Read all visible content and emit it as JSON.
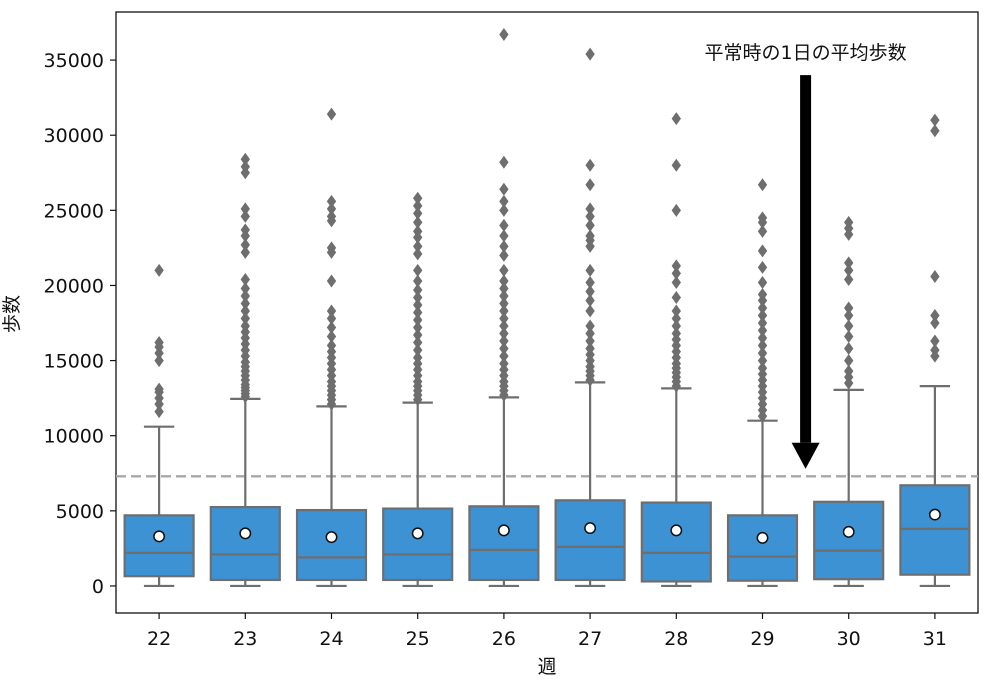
{
  "chart_data": {
    "type": "box",
    "xlabel": "週",
    "ylabel": "歩数",
    "ylim": [
      -1800,
      38200
    ],
    "yticks": [
      0,
      5000,
      10000,
      15000,
      20000,
      25000,
      30000,
      35000
    ],
    "categories": [
      "22",
      "23",
      "24",
      "25",
      "26",
      "27",
      "28",
      "29",
      "30",
      "31"
    ],
    "reference_line": {
      "y": 7300,
      "style": "dashed",
      "color": "#a8a8a8"
    },
    "annotation": {
      "text": "平常時の1日の平均歩数",
      "arrow_from_y": 34000,
      "arrow_to_y": 7800,
      "arrow_x_category": "29.5"
    },
    "box_color": "#3d92d4",
    "line_color": "#6e6e6e",
    "boxes": [
      {
        "category": "22",
        "whisker_low": 0,
        "q1": 650,
        "median": 2200,
        "q3": 4700,
        "whisker_high": 10600,
        "mean": 3300,
        "outliers": [
          11600,
          12100,
          12500,
          12900,
          13100,
          15000,
          15500,
          15900,
          16200,
          21000
        ]
      },
      {
        "category": "23",
        "whisker_low": 0,
        "q1": 400,
        "median": 2100,
        "q3": 5250,
        "whisker_high": 12450,
        "mean": 3500,
        "outliers": [
          12600,
          12800,
          13000,
          13200,
          13400,
          13700,
          14000,
          14300,
          14600,
          14900,
          15300,
          15700,
          16100,
          16500,
          16900,
          17300,
          17800,
          18300,
          18800,
          19300,
          19800,
          20400,
          22200,
          22700,
          23300,
          23700,
          24600,
          25100,
          27500,
          27900,
          28400
        ]
      },
      {
        "category": "24",
        "whisker_low": 0,
        "q1": 400,
        "median": 1900,
        "q3": 5050,
        "whisker_high": 11950,
        "mean": 3250,
        "outliers": [
          12100,
          12400,
          12700,
          13000,
          13300,
          13600,
          14000,
          14400,
          14800,
          15200,
          15600,
          16000,
          16600,
          17200,
          17800,
          18300,
          20300,
          22200,
          22500,
          24300,
          24600,
          25100,
          25600,
          31400
        ]
      },
      {
        "category": "25",
        "whisker_low": 0,
        "q1": 400,
        "median": 2100,
        "q3": 5150,
        "whisker_high": 12200,
        "mean": 3500,
        "outliers": [
          12400,
          12700,
          13000,
          13300,
          13600,
          14000,
          14400,
          14800,
          15200,
          15700,
          16200,
          16700,
          17200,
          17700,
          18200,
          18700,
          19200,
          19700,
          20300,
          21000,
          22100,
          22600,
          23200,
          23600,
          24200,
          24800,
          25300,
          25800
        ]
      },
      {
        "category": "26",
        "whisker_low": 0,
        "q1": 400,
        "median": 2400,
        "q3": 5300,
        "whisker_high": 12550,
        "mean": 3700,
        "outliers": [
          12700,
          13000,
          13300,
          13600,
          14000,
          14400,
          14800,
          15300,
          15800,
          16300,
          16800,
          17300,
          17800,
          18300,
          18800,
          19300,
          19800,
          20300,
          21000,
          22000,
          22600,
          23300,
          24000,
          25000,
          25600,
          26400,
          28200,
          36700
        ]
      },
      {
        "category": "27",
        "whisker_low": 0,
        "q1": 400,
        "median": 2600,
        "q3": 5700,
        "whisker_high": 13550,
        "mean": 3850,
        "outliers": [
          13700,
          14000,
          14300,
          14600,
          15000,
          15400,
          15800,
          16300,
          16800,
          17300,
          18300,
          19000,
          19600,
          20200,
          21000,
          22600,
          23000,
          23300,
          24000,
          24600,
          25100,
          26700,
          28000,
          35400
        ]
      },
      {
        "category": "28",
        "whisker_low": 0,
        "q1": 300,
        "median": 2200,
        "q3": 5550,
        "whisker_high": 13150,
        "mean": 3700,
        "outliers": [
          13300,
          13600,
          13900,
          14200,
          14500,
          14800,
          15200,
          15600,
          16000,
          16400,
          16800,
          17300,
          17800,
          18300,
          19200,
          20200,
          20800,
          21300,
          25000,
          28000,
          31100
        ]
      },
      {
        "category": "29",
        "whisker_low": 0,
        "q1": 350,
        "median": 1950,
        "q3": 4700,
        "whisker_high": 11000,
        "mean": 3200,
        "outliers": [
          11300,
          11700,
          12100,
          12500,
          12900,
          13300,
          13700,
          14100,
          14500,
          15000,
          15500,
          16000,
          16500,
          17000,
          17500,
          18000,
          18500,
          19000,
          19400,
          20200,
          21200,
          22300,
          23600,
          24200,
          24500,
          26700
        ]
      },
      {
        "category": "30",
        "whisker_low": 0,
        "q1": 450,
        "median": 2350,
        "q3": 5600,
        "whisker_high": 13050,
        "mean": 3600,
        "outliers": [
          13500,
          13900,
          14300,
          15000,
          15800,
          16600,
          17300,
          18000,
          18500,
          20400,
          21000,
          21500,
          23400,
          23800,
          24200
        ]
      },
      {
        "category": "31",
        "whisker_low": 0,
        "q1": 750,
        "median": 3800,
        "q3": 6700,
        "whisker_high": 13300,
        "mean": 4750,
        "outliers": [
          15300,
          15700,
          16300,
          17500,
          18000,
          20600,
          30300,
          31000
        ]
      }
    ]
  }
}
